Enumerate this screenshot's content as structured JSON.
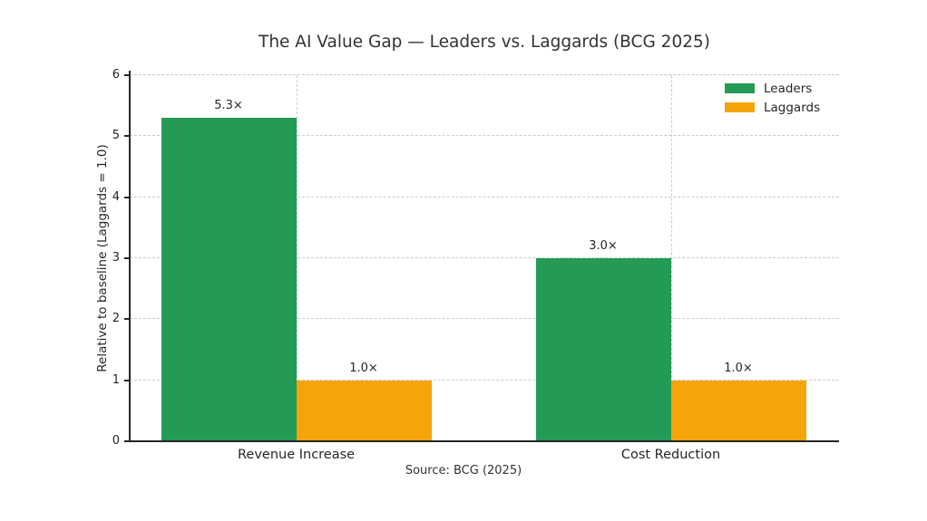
{
  "chart_data": {
    "type": "bar",
    "title": "The AI Value Gap — Leaders vs. Laggards (BCG 2025)",
    "categories": [
      "Revenue Increase",
      "Cost Reduction"
    ],
    "series": [
      {
        "name": "Leaders",
        "color": "#239b56",
        "values": [
          5.3,
          3.0
        ],
        "labels": [
          "5.3×",
          "3.0×"
        ]
      },
      {
        "name": "Laggards",
        "color": "#f5a40a",
        "values": [
          1.0,
          1.0
        ],
        "labels": [
          "1.0×",
          "1.0×"
        ]
      }
    ],
    "xlabel": "",
    "ylabel": "Relative to baseline (Laggards = 1.0)",
    "ylim": [
      0,
      6
    ],
    "yticks": [
      0,
      1,
      2,
      3,
      4,
      5,
      6
    ],
    "grid": "dashed",
    "grid_color": "#cccccc",
    "axis_color": "#262626",
    "legend_position": "upper right",
    "annotation": "Source: BCG (2025)"
  }
}
